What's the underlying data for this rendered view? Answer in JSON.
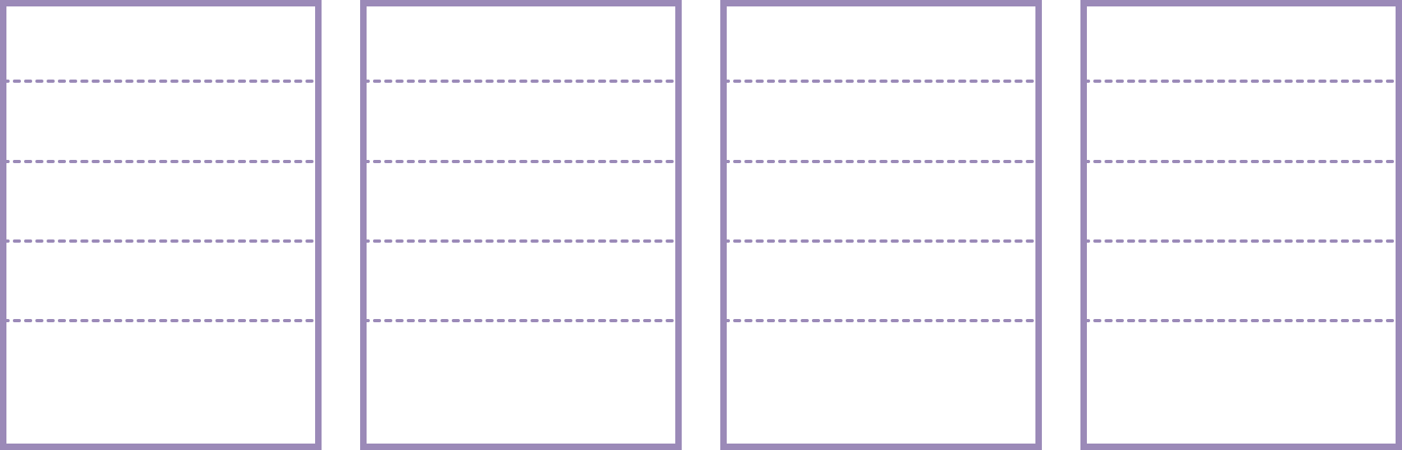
{
  "diagram": {
    "panel_count": 4,
    "rows_per_panel": 5,
    "colors": {
      "border": "#9B8AB8",
      "divider": "#9B8AB8",
      "background": "#ffffff"
    },
    "divider_style": "dashed"
  }
}
